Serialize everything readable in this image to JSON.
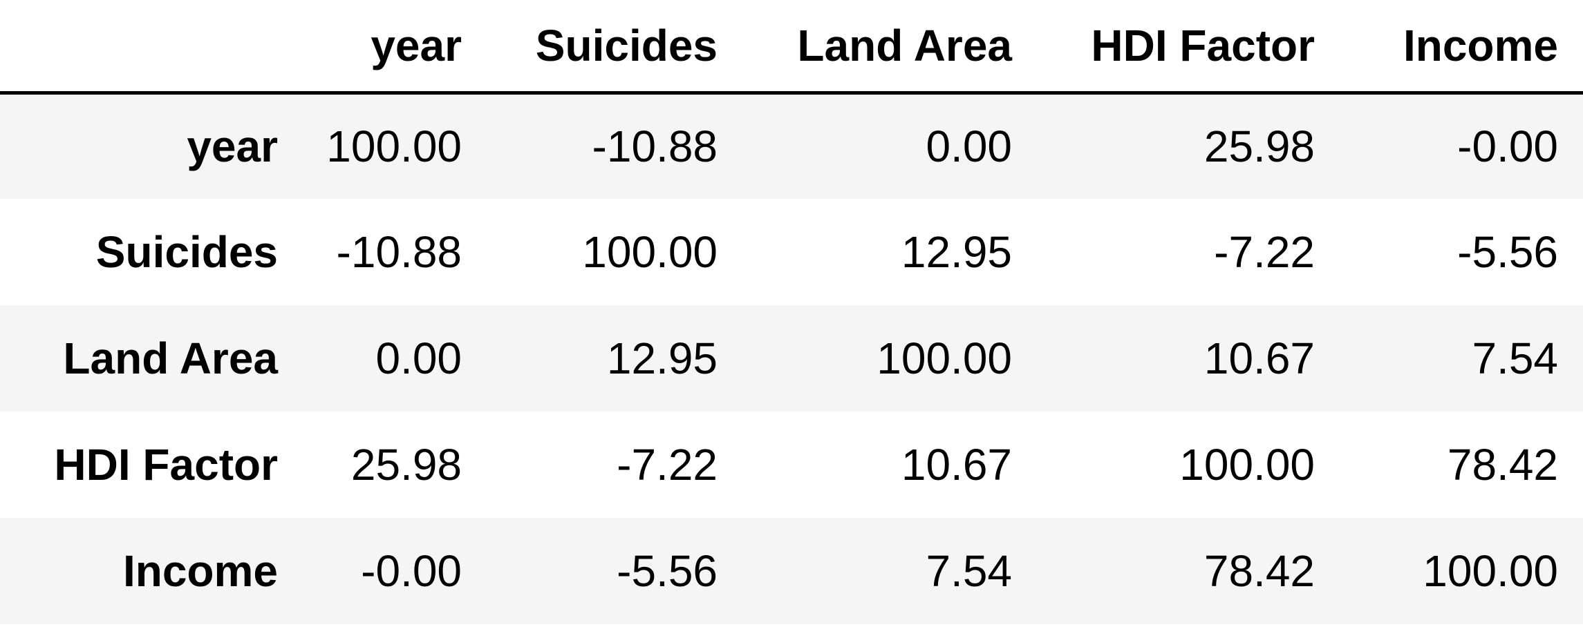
{
  "chart_data": {
    "type": "table",
    "columns": [
      "year",
      "Suicides",
      "Land Area",
      "HDI Factor",
      "Income"
    ],
    "rows": [
      {
        "label": "year",
        "values": [
          "100.00",
          "-10.88",
          "0.00",
          "25.98",
          "-0.00"
        ]
      },
      {
        "label": "Suicides",
        "values": [
          "-10.88",
          "100.00",
          "12.95",
          "-7.22",
          "-5.56"
        ]
      },
      {
        "label": "Land Area",
        "values": [
          "0.00",
          "12.95",
          "100.00",
          "10.67",
          "7.54"
        ]
      },
      {
        "label": "HDI Factor",
        "values": [
          "25.98",
          "-7.22",
          "10.67",
          "100.00",
          "78.42"
        ]
      },
      {
        "label": "Income",
        "values": [
          "-0.00",
          "-5.56",
          "7.54",
          "78.42",
          "100.00"
        ]
      }
    ],
    "striped_row_color": "#f5f5f5",
    "header_rule_color": "#000000"
  }
}
